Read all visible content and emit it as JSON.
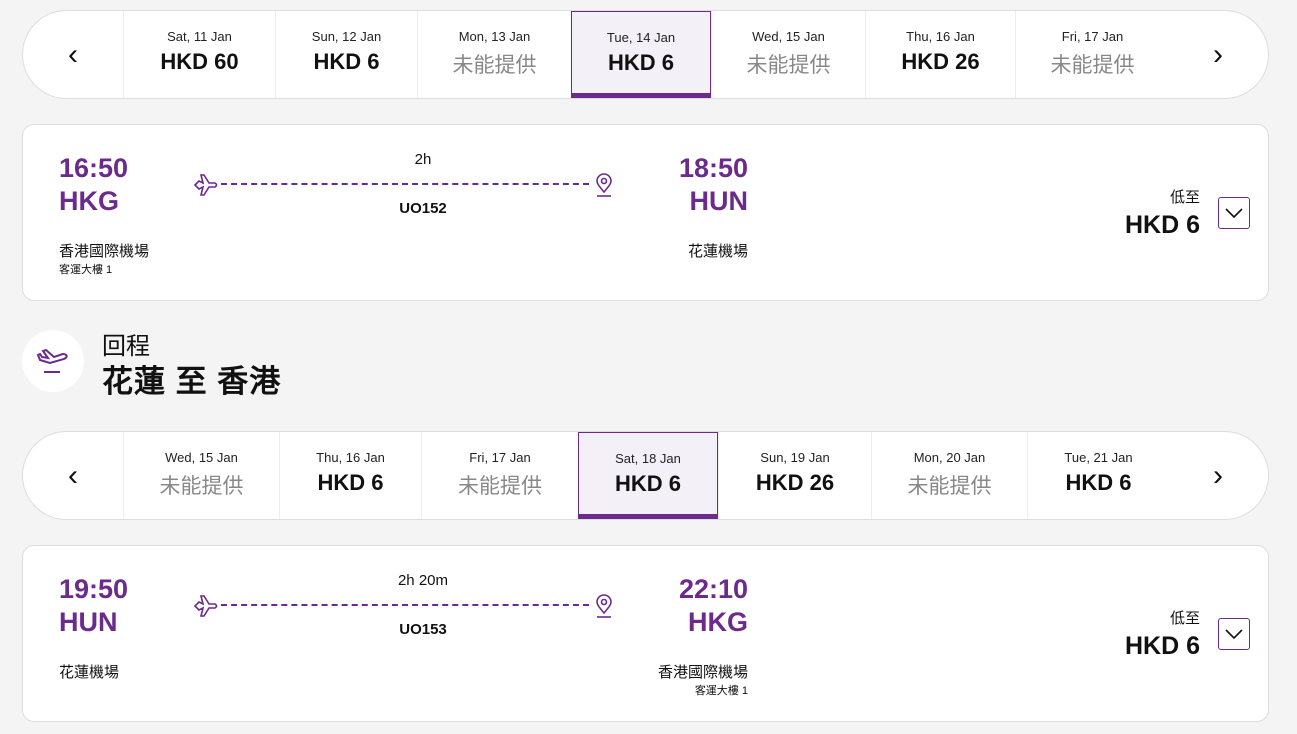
{
  "accent": "#6b2a8c",
  "outbound": {
    "dates": [
      {
        "date": "Sat, 11 Jan",
        "price": "HKD 60",
        "available": true
      },
      {
        "date": "Sun, 12 Jan",
        "price": "HKD 6",
        "available": true
      },
      {
        "date": "Mon, 13 Jan",
        "price": "未能提供",
        "available": false
      },
      {
        "date": "Tue, 14 Jan",
        "price": "HKD 6",
        "available": true,
        "selected": true
      },
      {
        "date": "Wed, 15 Jan",
        "price": "未能提供",
        "available": false
      },
      {
        "date": "Thu, 16 Jan",
        "price": "HKD 26",
        "available": true
      },
      {
        "date": "Fri, 17 Jan",
        "price": "未能提供",
        "available": false
      }
    ],
    "flight": {
      "dep_time": "16:50",
      "dep_code": "HKG",
      "dep_airport": "香港國際機場",
      "dep_terminal": "客運大樓 1",
      "duration": "2h",
      "flight_no": "UO152",
      "arr_time": "18:50",
      "arr_code": "HUN",
      "arr_airport": "花蓮機場",
      "arr_terminal": "",
      "from_label": "低至",
      "price": "HKD 6"
    }
  },
  "return_header": {
    "label": "回程",
    "route": "花蓮 至 香港"
  },
  "inbound": {
    "dates": [
      {
        "date": "Wed, 15 Jan",
        "price": "未能提供",
        "available": false
      },
      {
        "date": "Thu, 16 Jan",
        "price": "HKD 6",
        "available": true
      },
      {
        "date": "Fri, 17 Jan",
        "price": "未能提供",
        "available": false
      },
      {
        "date": "Sat, 18 Jan",
        "price": "HKD 6",
        "available": true,
        "selected": true
      },
      {
        "date": "Sun, 19 Jan",
        "price": "HKD 26",
        "available": true
      },
      {
        "date": "Mon, 20 Jan",
        "price": "未能提供",
        "available": false
      },
      {
        "date": "Tue, 21 Jan",
        "price": "HKD 6",
        "available": true
      }
    ],
    "flight": {
      "dep_time": "19:50",
      "dep_code": "HUN",
      "dep_airport": "花蓮機場",
      "dep_terminal": "",
      "duration": "2h 20m",
      "flight_no": "UO153",
      "arr_time": "22:10",
      "arr_code": "HKG",
      "arr_airport": "香港國際機場",
      "arr_terminal": "客運大樓 1",
      "from_label": "低至",
      "price": "HKD 6"
    }
  }
}
